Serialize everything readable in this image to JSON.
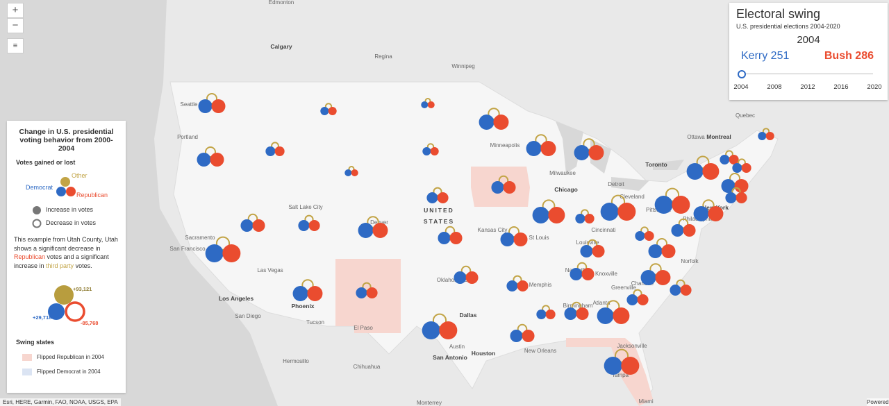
{
  "map": {
    "country_label_lines": [
      "UNITED",
      "STATES"
    ],
    "city_labels": [
      "Edmonton",
      "Calgary",
      "Regina",
      "Winnipeg",
      "Seattle",
      "Portland",
      "Minneapolis",
      "Milwaukee",
      "Toronto",
      "Ottawa",
      "Montreal",
      "Quebec",
      "Chicago",
      "Detroit",
      "Cleveland",
      "Pittsburgh",
      "New York",
      "Philadelphia",
      "Salt Lake City",
      "Denver",
      "Kansas City",
      "St Louis",
      "Cincinnati",
      "Louisville",
      "Sacramento",
      "San Francisco",
      "Las Vegas",
      "Los Angeles",
      "San Diego",
      "Phoenix",
      "Tucson",
      "El Paso",
      "Oklahoma City",
      "Memphis",
      "Nashville",
      "Knoxville",
      "Charlotte",
      "Greenville",
      "Norfolk",
      "Atlanta",
      "Birmingham",
      "Dallas",
      "Austin",
      "San Antonio",
      "Houston",
      "New Orleans",
      "Jacksonville",
      "Tampa",
      "Hermosillo",
      "Chihuahua",
      "Monterrey",
      "Miami"
    ],
    "attribution": "Esri, HERE, Garmin, FAO, NOAA, USGS, EPA",
    "powered_by": "Powered by Esri"
  },
  "swing_panel": {
    "title": "Electoral swing",
    "subtitle": "U.S. presidential elections 2004-2020",
    "year": "2004",
    "democrat": "Kerry 251",
    "republican": "Bush 286",
    "slider_ticks": [
      "2004",
      "2008",
      "2012",
      "2016",
      "2020"
    ]
  },
  "legend": {
    "title": "Change in U.S. presidential voting behavior from 2000-2004",
    "votes_heading": "Votes gained or lost",
    "other": "Other",
    "democrat": "Democrat",
    "republican": "Republican",
    "increase": "Increase in votes",
    "decrease": "Decrease in votes",
    "example_text": [
      "This example from Utah County, Utah shows a significant decrease in ",
      "Republican",
      " votes and a significant increase in ",
      "third party",
      " votes."
    ],
    "example_values": {
      "other": "+93,121",
      "democrat": "+29,718",
      "republican": "-85,768"
    },
    "swing_heading": "Swing states",
    "flipped_republican": "Flipped Republican in 2004",
    "flipped_democrat": "Flipped Democrat in 2004"
  }
}
